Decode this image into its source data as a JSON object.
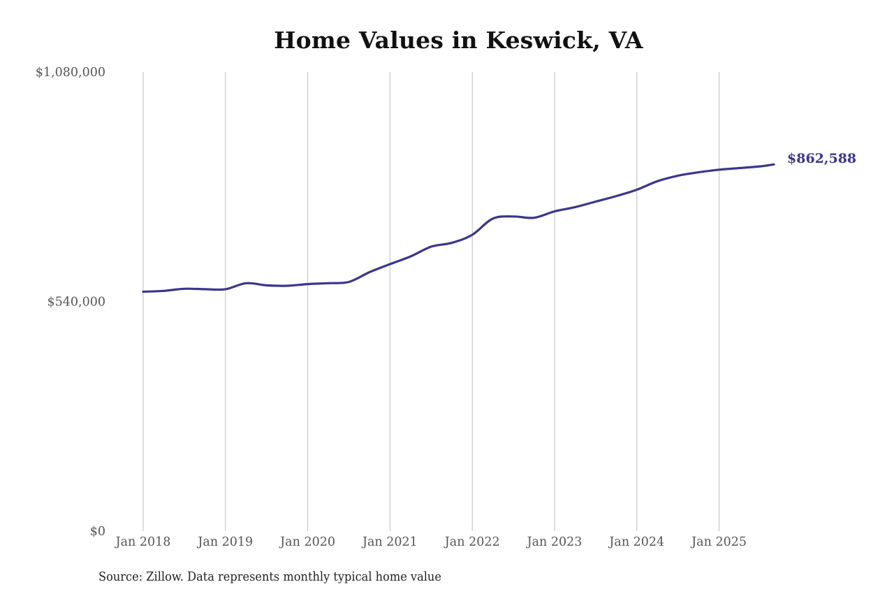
{
  "chart_data": {
    "type": "line",
    "title": "Home Values in Keswick, VA",
    "xlabel": "",
    "ylabel": "",
    "ylim": [
      0,
      1080000
    ],
    "y_ticks": [
      {
        "value": 0,
        "label": "$0"
      },
      {
        "value": 540000,
        "label": "$540,000"
      },
      {
        "value": 1080000,
        "label": "$1,080,000"
      }
    ],
    "x_ticks": [
      "Jan 2018",
      "Jan 2019",
      "Jan 2020",
      "Jan 2021",
      "Jan 2022",
      "Jan 2023",
      "Jan 2024",
      "Jan 2025"
    ],
    "grid": {
      "vertical": true,
      "horizontal": false
    },
    "legend": "none",
    "series": [
      {
        "name": "Typical home value",
        "color": "#3a3591",
        "x": [
          "2018-01",
          "2018-04",
          "2018-07",
          "2018-10",
          "2019-01",
          "2019-04",
          "2019-07",
          "2019-10",
          "2020-01",
          "2020-04",
          "2020-07",
          "2020-10",
          "2021-01",
          "2021-04",
          "2021-07",
          "2021-10",
          "2022-01",
          "2022-04",
          "2022-07",
          "2022-10",
          "2023-01",
          "2023-04",
          "2023-07",
          "2023-10",
          "2024-01",
          "2024-04",
          "2024-07",
          "2024-10",
          "2025-01",
          "2025-04",
          "2025-07",
          "2025-09"
        ],
        "values": [
          563000,
          565000,
          570000,
          569000,
          569000,
          583000,
          578000,
          577000,
          581000,
          583000,
          586000,
          609000,
          628000,
          646000,
          669000,
          678000,
          697000,
          735000,
          740000,
          737000,
          752000,
          762000,
          775000,
          788000,
          803000,
          823000,
          836000,
          844000,
          850000,
          854000,
          858000,
          862588
        ]
      }
    ],
    "end_label": "$862,588",
    "annotations": [
      "$862,588"
    ]
  },
  "footer": {
    "source": "Source: Zillow. Data represents monthly typical home value"
  },
  "colors": {
    "line": "#3a3591",
    "grid": "#bdbdbd",
    "tick_text": "#555555",
    "title": "#111111"
  }
}
